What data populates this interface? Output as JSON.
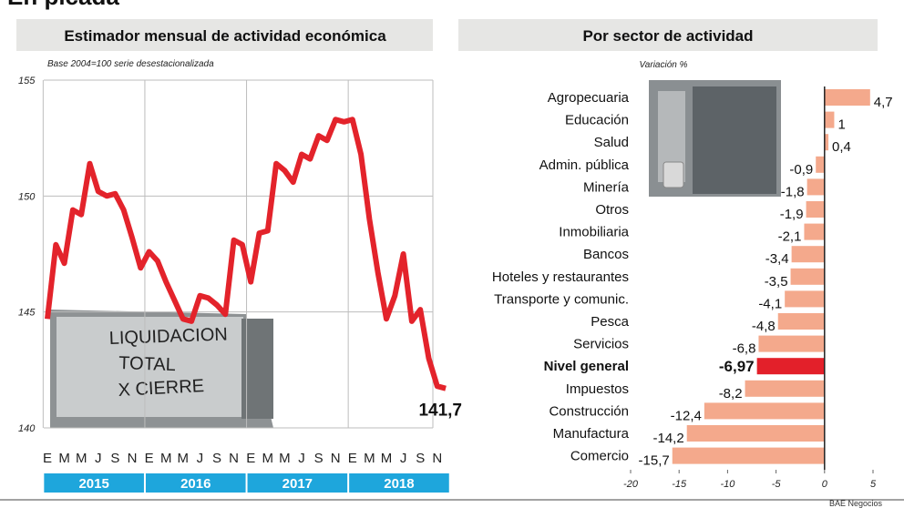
{
  "header": {
    "title": "En picada",
    "source": "BAE Negocios"
  },
  "photo_text": [
    "LIQUIDACION",
    "TOTAL",
    "X CIERRE"
  ],
  "chart_data": [
    {
      "type": "line",
      "title": "Estimador mensual de actividad económica",
      "subtitle": "Base 2004=100 serie desestacionalizada",
      "categories": [
        "E",
        null,
        "M",
        null,
        "M",
        null,
        "J",
        null,
        "S",
        null,
        "N",
        null,
        "E",
        null,
        "M",
        null,
        "M",
        null,
        "J",
        null,
        "S",
        null,
        "N",
        null,
        "E",
        null,
        "M",
        null,
        "M",
        null,
        "J",
        null,
        "S",
        null,
        "N",
        null,
        "E",
        null,
        "M",
        null,
        "M",
        null,
        "J",
        null,
        "S",
        null,
        "N",
        null
      ],
      "x_groups": [
        "2015",
        "2016",
        "2017",
        "2018"
      ],
      "values": [
        144.7,
        147.9,
        147.1,
        149.4,
        149.2,
        151.4,
        150.2,
        150.0,
        150.1,
        149.4,
        148.2,
        146.9,
        147.6,
        147.2,
        146.3,
        145.5,
        144.7,
        144.6,
        145.7,
        145.6,
        145.3,
        144.9,
        148.1,
        147.9,
        146.3,
        148.4,
        148.5,
        151.4,
        151.1,
        150.6,
        151.8,
        151.6,
        152.6,
        152.4,
        153.3,
        153.2,
        153.3,
        151.8,
        149.0,
        146.7,
        144.7,
        145.7,
        147.5,
        144.6,
        145.1,
        143.0,
        141.8,
        141.7
      ],
      "value_labels": [
        null,
        null,
        null,
        null,
        null,
        null,
        null,
        null,
        null,
        null,
        null,
        null,
        null,
        null,
        null,
        null,
        null,
        null,
        null,
        null,
        null,
        null,
        null,
        null,
        null,
        null,
        null,
        null,
        null,
        null,
        null,
        null,
        null,
        null,
        null,
        null,
        null,
        null,
        null,
        null,
        null,
        null,
        null,
        null,
        null,
        null,
        null,
        "141,7"
      ],
      "color": "#e3232b",
      "group_color": "#1ea6dc",
      "ylim": [
        140,
        155
      ],
      "yticks": [
        140,
        145,
        150,
        155
      ],
      "grid": true
    },
    {
      "type": "barh",
      "title": "Por sector de actividad",
      "subtitle": "Variación %",
      "categories": [
        "Agropecuaria",
        "Educación",
        "Salud",
        "Admin. pública",
        "Minería",
        "Otros",
        "Inmobiliaria",
        "Bancos",
        "Hoteles y restaurantes",
        "Transporte y comunic.",
        "Pesca",
        "Servicios",
        "Nivel general",
        "Impuestos",
        "Construcción",
        "Manufactura",
        "Comercio"
      ],
      "values": [
        4.7,
        1,
        0.4,
        -0.9,
        -1.8,
        -1.9,
        -2.1,
        -3.4,
        -3.5,
        -4.1,
        -4.8,
        -6.8,
        -6.97,
        -8.2,
        -12.4,
        -14.2,
        -15.7
      ],
      "value_labels": [
        "4,7",
        "1",
        "0,4",
        "-0,9",
        "-1,8",
        "-1,9",
        "-2,1",
        "-3,4",
        "-3,5",
        "-4,1",
        "-4,8",
        "-6,8",
        "-6,97",
        "-8,2",
        "-12,4",
        "-14,2",
        "-15,7"
      ],
      "color": "#f4a98c",
      "colors": [
        "#f4a98c",
        "#f4a98c",
        "#f4a98c",
        "#f4a98c",
        "#f4a98c",
        "#f4a98c",
        "#f4a98c",
        "#f4a98c",
        "#f4a98c",
        "#f4a98c",
        "#f4a98c",
        "#f4a98c",
        "#e3202a",
        "#f4a98c",
        "#f4a98c",
        "#f4a98c",
        "#f4a98c"
      ],
      "xlim": [
        -20,
        5
      ],
      "xticks": [
        -20,
        -15,
        -10,
        -5,
        0,
        5
      ]
    }
  ]
}
